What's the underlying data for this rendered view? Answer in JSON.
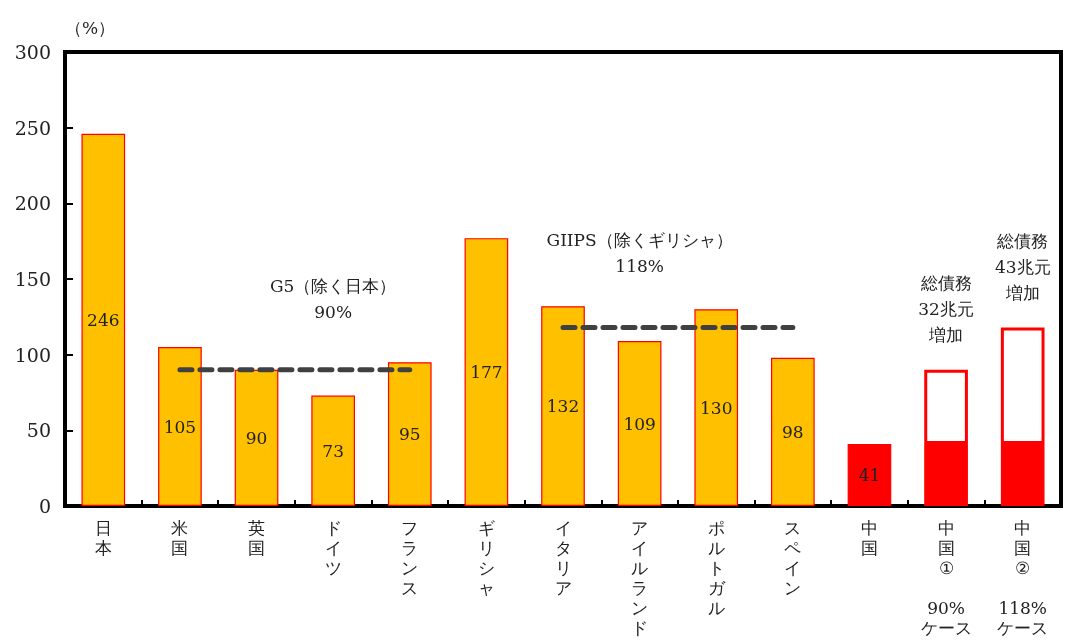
{
  "chart_data": {
    "type": "bar",
    "ylabel": "（%）",
    "stacked": true,
    "categories": [
      "日本",
      "米国",
      "英国",
      "ドイツ",
      "フランス",
      "ギリシャ",
      "イタリア",
      "アイルランド",
      "ポルトガル",
      "スペイン",
      "中国",
      "中国①\n90%\nケース",
      "中国②\n118%\nケース"
    ],
    "series": [
      {
        "colors": [
          "#ffc000",
          "#ffc000",
          "#ffc000",
          "#ffc000",
          "#ffc000",
          "#ffc000",
          "#ffc000",
          "#ffc000",
          "#ffc000",
          "#ffc000",
          "#ff0000",
          "#ff0000",
          "#ff0000"
        ],
        "values": [
          246,
          105,
          90,
          73,
          95,
          177,
          132,
          109,
          130,
          98,
          41,
          41,
          41
        ],
        "value_labels": [
          "246",
          "105",
          "90",
          "73",
          "95",
          "177",
          "132",
          "109",
          "130",
          "98",
          "41",
          null,
          null
        ]
      },
      {
        "color": "#ff0000",
        "values": [
          null,
          null,
          null,
          null,
          null,
          null,
          null,
          null,
          null,
          null,
          null,
          49,
          77
        ]
      },
      {
        "type": "line",
        "color": "#404040",
        "line_style": "dashed",
        "marker": "none",
        "x": [
          "米国",
          "英国",
          "ドイツ",
          "フランス"
        ],
        "values": [
          90,
          90,
          90,
          90
        ]
      },
      {
        "type": "line",
        "color": "#404040",
        "line_style": "dashed",
        "marker": "none",
        "x": [
          "イタリア",
          "アイルランド",
          "ポルトガル",
          "スペイン"
        ],
        "values": [
          118,
          118,
          118,
          118
        ]
      }
    ],
    "annotations": [
      "G5（除く日本）90%",
      "GIIPS（除くギリシャ）118%",
      "総債務32兆元増加",
      "総債務43兆元増加"
    ],
    "ylim": [
      0,
      300
    ],
    "yticks": [
      0,
      50,
      100,
      150,
      200,
      250,
      300
    ],
    "grid": false
  }
}
